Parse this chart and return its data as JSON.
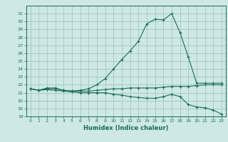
{
  "xlabel": "Humidex (Indice chaleur)",
  "x": [
    0,
    1,
    2,
    3,
    4,
    5,
    6,
    7,
    8,
    9,
    10,
    11,
    12,
    13,
    14,
    15,
    16,
    17,
    18,
    19,
    20,
    21,
    22,
    23
  ],
  "y_max": [
    21.5,
    21.3,
    21.6,
    21.6,
    21.3,
    21.2,
    21.3,
    21.5,
    22.0,
    22.8,
    24.0,
    25.2,
    26.3,
    27.5,
    29.7,
    30.3,
    30.2,
    31.0,
    28.6,
    25.5,
    22.2,
    22.2,
    22.2,
    22.2
  ],
  "y_avg": [
    21.5,
    21.3,
    21.5,
    21.5,
    21.3,
    21.2,
    21.2,
    21.2,
    21.3,
    21.4,
    21.5,
    21.5,
    21.6,
    21.6,
    21.6,
    21.6,
    21.7,
    21.8,
    21.8,
    21.8,
    21.9,
    22.0,
    22.0,
    22.0
  ],
  "y_min": [
    21.5,
    21.3,
    21.4,
    21.3,
    21.2,
    21.1,
    21.0,
    21.0,
    21.0,
    21.0,
    20.8,
    20.7,
    20.5,
    20.4,
    20.3,
    20.3,
    20.5,
    20.8,
    20.5,
    19.5,
    19.2,
    19.1,
    18.8,
    18.3
  ],
  "line_color": "#1a6b5a",
  "bg_color": "#cde8e5",
  "grid_color": "#9bbfbe",
  "ylim": [
    18,
    32
  ],
  "yticks": [
    18,
    19,
    20,
    21,
    22,
    23,
    24,
    25,
    26,
    27,
    28,
    29,
    30,
    31
  ],
  "xticks": [
    0,
    1,
    2,
    3,
    4,
    5,
    6,
    7,
    8,
    9,
    10,
    11,
    12,
    13,
    14,
    15,
    16,
    17,
    18,
    19,
    20,
    21,
    22,
    23
  ],
  "marker": "+"
}
